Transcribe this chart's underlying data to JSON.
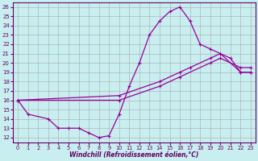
{
  "xlabel": "Windchill (Refroidissement éolien,°C)",
  "bg_color": "#c8eef0",
  "line_color": "#990099",
  "grid_color": "#aaaaaa",
  "xlim": [
    -0.5,
    23.5
  ],
  "ylim": [
    11.5,
    26.5
  ],
  "xticks": [
    0,
    1,
    2,
    3,
    4,
    5,
    6,
    7,
    8,
    9,
    10,
    11,
    12,
    13,
    14,
    15,
    16,
    17,
    18,
    19,
    20,
    21,
    22,
    23
  ],
  "yticks": [
    12,
    13,
    14,
    15,
    16,
    17,
    18,
    19,
    20,
    21,
    22,
    23,
    24,
    25,
    26
  ],
  "line1_x": [
    0,
    1,
    3,
    4,
    5,
    6,
    7,
    8,
    9,
    10,
    11,
    12,
    13,
    14,
    15,
    16,
    17,
    18,
    19,
    20,
    21,
    22,
    23
  ],
  "line1_y": [
    16,
    14.5,
    14,
    13,
    13,
    13,
    12.5,
    12,
    12.2,
    14.5,
    17.5,
    20,
    23,
    24.5,
    25.5,
    26,
    24.5,
    22,
    21.5,
    21,
    20.5,
    19,
    19
  ],
  "line2_x": [
    0,
    10,
    14,
    16,
    17,
    19,
    20,
    22,
    23
  ],
  "line2_y": [
    16,
    16.5,
    18,
    19,
    19.5,
    20.5,
    21,
    19,
    19
  ],
  "line3_x": [
    0,
    10,
    14,
    16,
    19,
    20,
    22,
    23
  ],
  "line3_y": [
    16,
    16,
    17.5,
    18.5,
    20,
    20.5,
    19.5,
    19.5
  ]
}
